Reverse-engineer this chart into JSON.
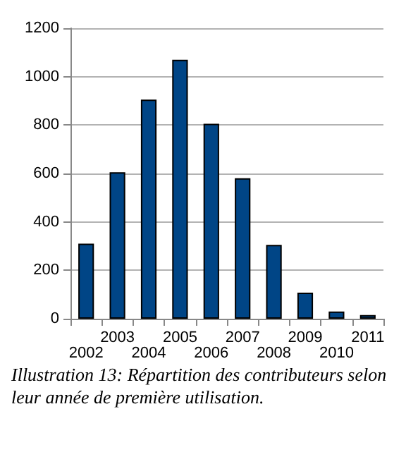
{
  "chart_data": {
    "type": "bar",
    "categories": [
      "2002",
      "2003",
      "2004",
      "2005",
      "2006",
      "2007",
      "2008",
      "2009",
      "2010",
      "2011"
    ],
    "values": [
      310,
      605,
      905,
      1070,
      805,
      580,
      305,
      108,
      30,
      15
    ],
    "color": "#004586",
    "ylim": [
      0,
      1200
    ],
    "yticks": [
      0,
      200,
      400,
      600,
      800,
      1000,
      1200
    ],
    "grid": "y",
    "annotations": [
      "Illustration 13: Répartition des contributeurs selon leur année de première utilisation."
    ]
  }
}
